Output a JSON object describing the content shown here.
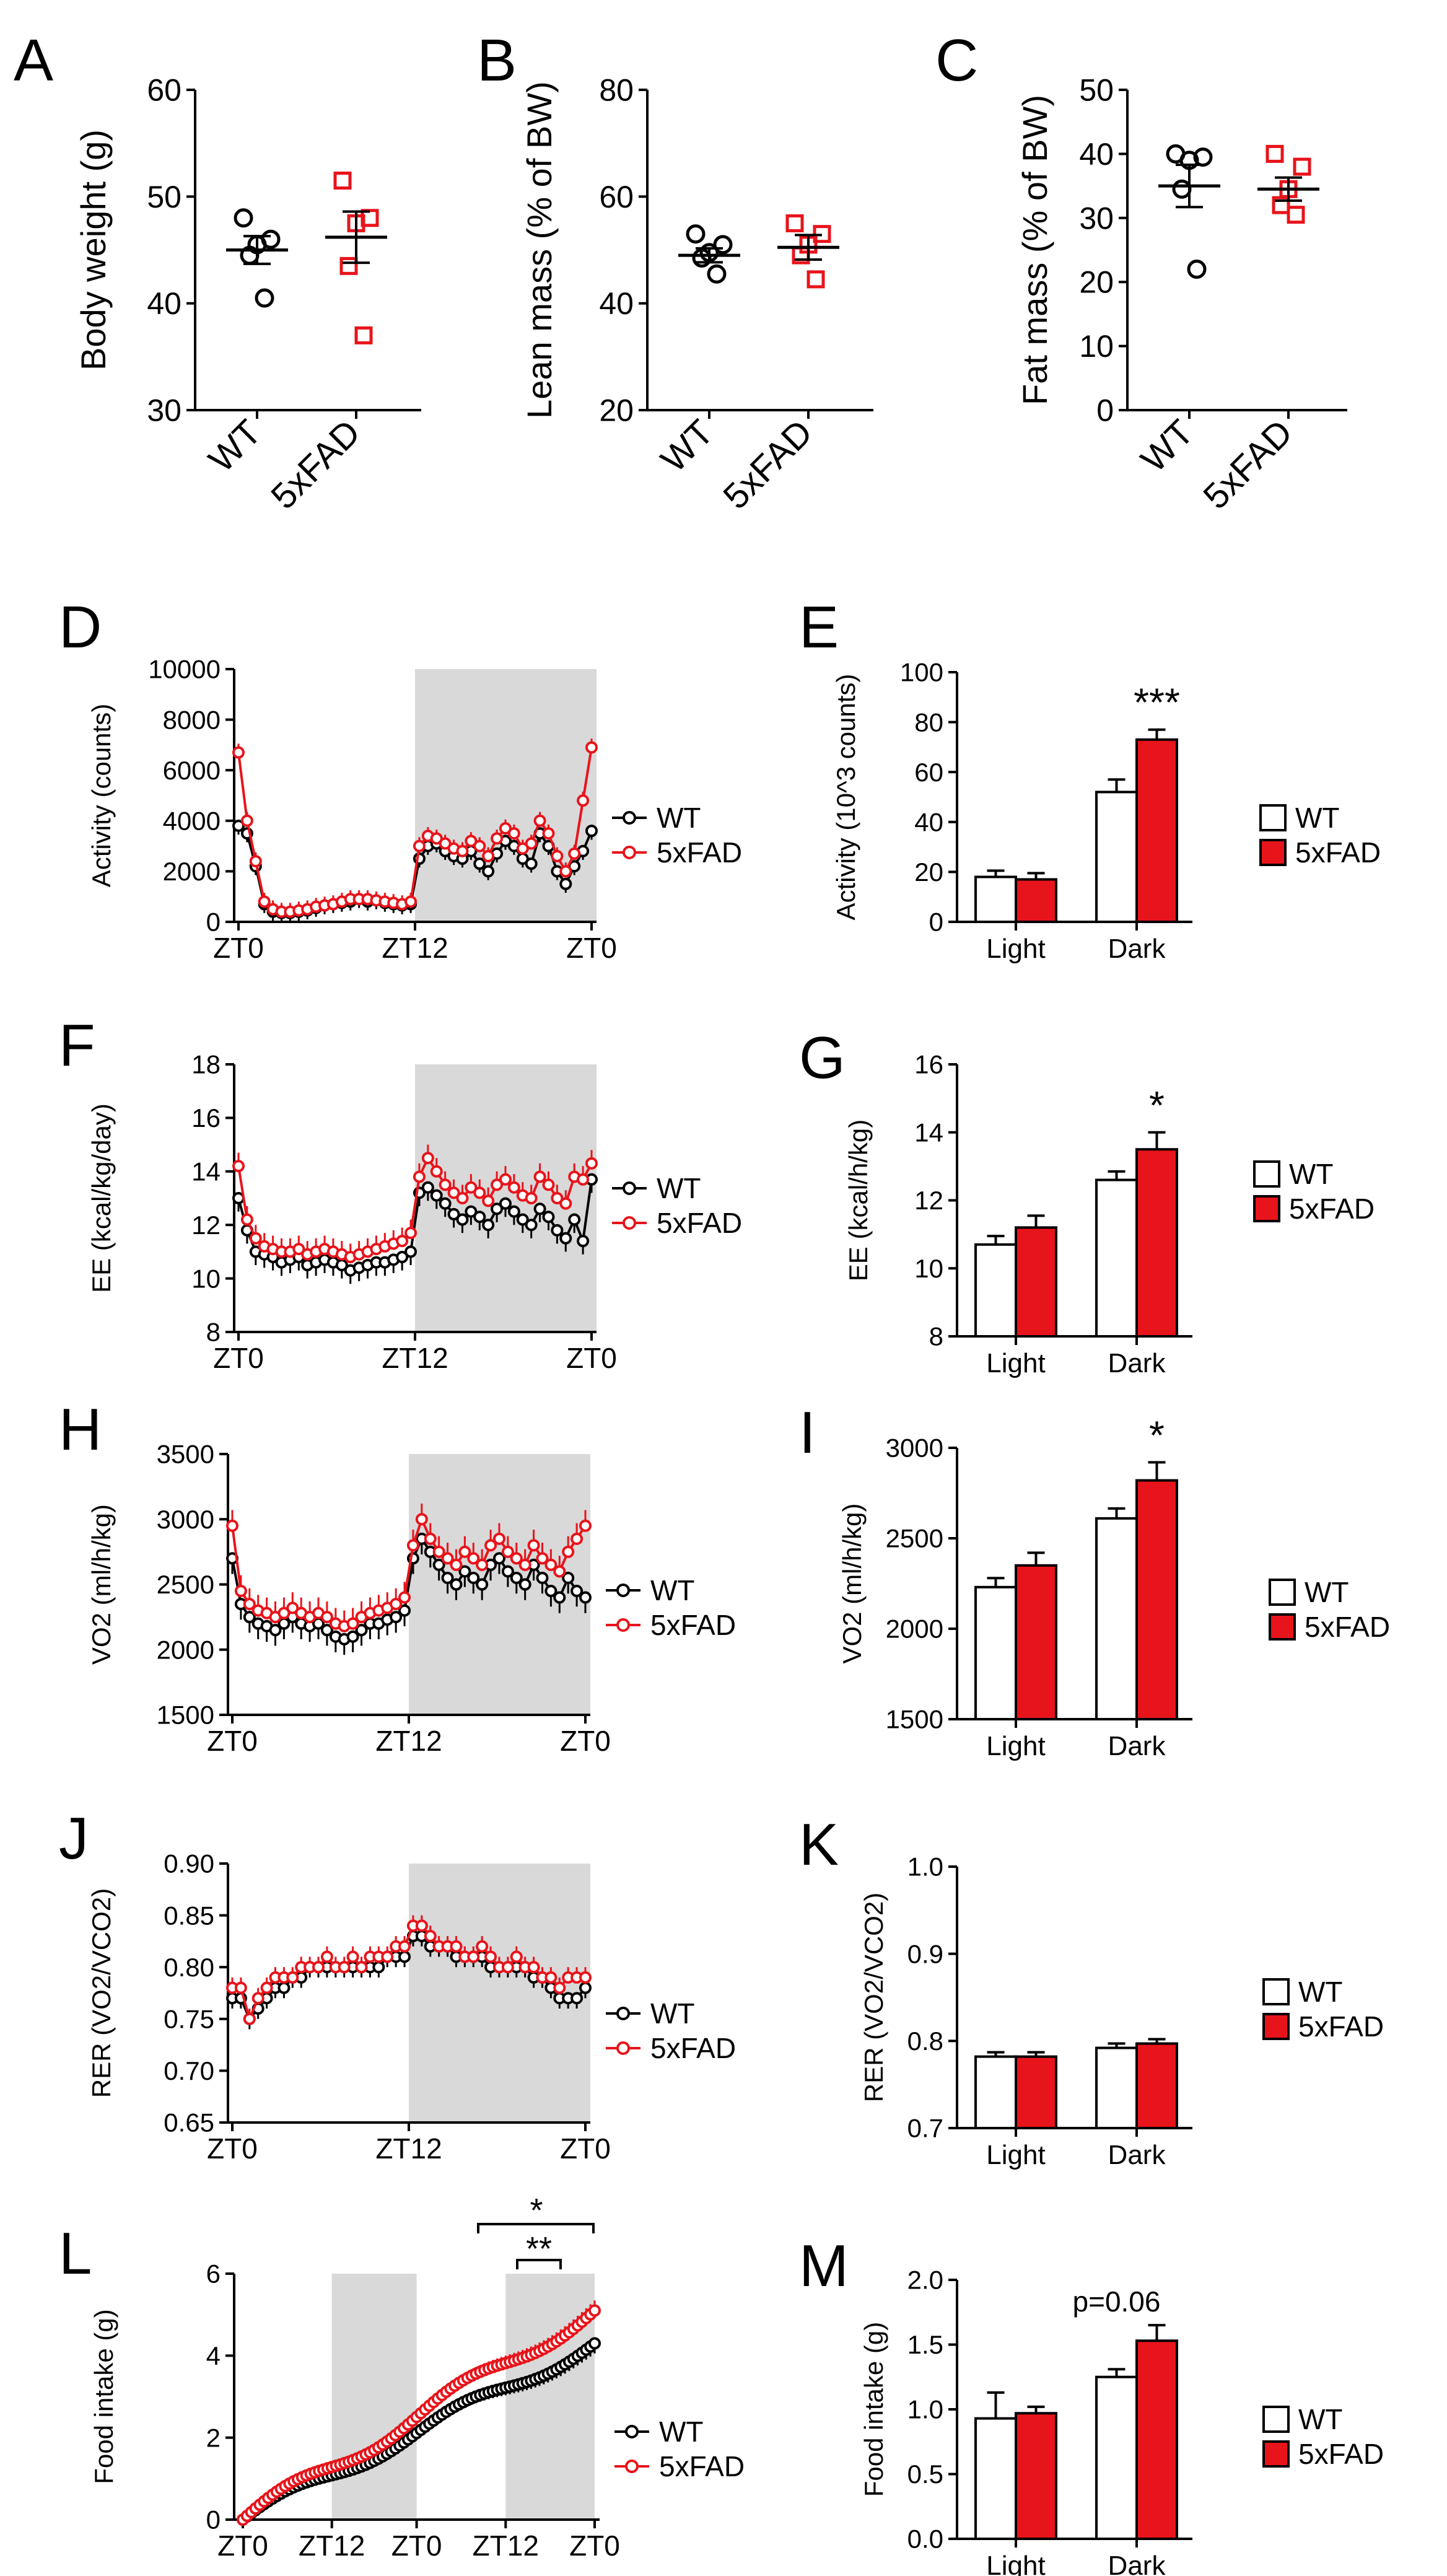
{
  "colors": {
    "wt": "#000000",
    "fad": "#e8141b",
    "shade": "#d9d9d9"
  },
  "chart_data": [
    {
      "id": "A",
      "letter": "A",
      "type": "scatter",
      "ylabel": "Body weight  (g)",
      "ylim": [
        30,
        60
      ],
      "yticks": [
        30,
        40,
        50,
        60
      ],
      "groups": [
        "WT",
        "5xFAD"
      ],
      "wt": [
        48,
        46,
        45.5,
        44.5,
        40.5
      ],
      "fad": [
        51.5,
        48,
        47.5,
        43.5,
        37
      ],
      "wt_mean": 45,
      "wt_sem": 1.3,
      "fad_mean": 46.2,
      "fad_sem": 2.4
    },
    {
      "id": "B",
      "letter": "B",
      "type": "scatter",
      "ylabel": "Lean mass (% of  BW)",
      "ylim": [
        20,
        80
      ],
      "yticks": [
        20,
        40,
        60,
        80
      ],
      "groups": [
        "WT",
        "5xFAD"
      ],
      "wt": [
        53,
        51,
        49.5,
        48.5,
        45.5
      ],
      "fad": [
        55,
        53,
        51,
        49,
        44.5
      ],
      "wt_mean": 49,
      "wt_sem": 1.3,
      "fad_mean": 50.5,
      "fad_sem": 2.3
    },
    {
      "id": "C",
      "letter": "C",
      "type": "scatter",
      "ylabel": "Fat mass (% of  BW)",
      "ylim": [
        0,
        50
      ],
      "yticks": [
        0,
        10,
        20,
        30,
        40,
        50
      ],
      "groups": [
        "WT",
        "5xFAD"
      ],
      "wt": [
        40,
        39.5,
        39,
        34.5,
        22
      ],
      "fad": [
        40,
        38,
        34.5,
        32,
        30.5
      ],
      "wt_mean": 35,
      "wt_sem": 3.3,
      "fad_mean": 34.5,
      "fad_sem": 1.8
    },
    {
      "id": "D",
      "letter": "D",
      "type": "line",
      "ylabel": "Activity (counts)",
      "ylim": [
        0,
        10000
      ],
      "yticks": [
        0,
        2000,
        4000,
        6000,
        8000,
        10000
      ],
      "xticks": [
        "ZT0",
        "ZT12",
        "ZT0"
      ],
      "legend": [
        "WT",
        "5xFAD"
      ],
      "wt": [
        3800,
        3500,
        2200,
        700,
        400,
        350,
        350,
        400,
        450,
        550,
        650,
        700,
        750,
        800,
        900,
        800,
        850,
        750,
        700,
        650,
        700,
        2500,
        3000,
        3100,
        2800,
        2600,
        2500,
        2800,
        2300,
        2000,
        2700,
        3200,
        3000,
        2500,
        2300,
        3500,
        3000,
        2000,
        1500,
        2200,
        2800,
        3600
      ],
      "fad": [
        6700,
        4000,
        2400,
        800,
        500,
        400,
        400,
        450,
        500,
        600,
        650,
        700,
        800,
        900,
        900,
        900,
        850,
        800,
        750,
        700,
        800,
        3000,
        3400,
        3300,
        3100,
        2900,
        2800,
        3200,
        3000,
        2600,
        3300,
        3700,
        3500,
        2900,
        3100,
        4000,
        3500,
        2600,
        2000,
        2700,
        4800,
        6900
      ],
      "err": 350
    },
    {
      "id": "E",
      "letter": "E",
      "type": "bar",
      "ylabel": "Activity (10^3 counts)",
      "ylim": [
        0,
        100
      ],
      "yticks": [
        0,
        20,
        40,
        60,
        80,
        100
      ],
      "categories": [
        "Light",
        "Dark"
      ],
      "series": [
        {
          "name": "WT",
          "values": [
            18,
            52
          ],
          "err": [
            2.5,
            5
          ]
        },
        {
          "name": "5xFAD",
          "values": [
            17,
            73
          ],
          "err": [
            2.5,
            4
          ]
        }
      ],
      "annotation": "***",
      "legend": [
        "WT",
        "5xFAD"
      ]
    },
    {
      "id": "F",
      "letter": "F",
      "type": "line",
      "ylabel": "EE (kcal/kg/day)",
      "ylim": [
        8,
        18
      ],
      "yticks": [
        8,
        10,
        12,
        14,
        16,
        18
      ],
      "xticks": [
        "ZT0",
        "ZT12",
        "ZT0"
      ],
      "legend": [
        "WT",
        "5xFAD"
      ],
      "wt": [
        13,
        11.8,
        11,
        10.9,
        10.8,
        10.6,
        10.7,
        10.8,
        10.5,
        10.6,
        10.7,
        10.6,
        10.5,
        10.3,
        10.4,
        10.5,
        10.6,
        10.6,
        10.7,
        10.8,
        11,
        13.2,
        13.4,
        13.1,
        12.8,
        12.4,
        12.2,
        12.5,
        12.3,
        12,
        12.6,
        12.8,
        12.5,
        12.2,
        12,
        12.6,
        12.3,
        11.8,
        11.5,
        12.2,
        11.4,
        13.7
      ],
      "fad": [
        14.2,
        12.2,
        11.5,
        11.2,
        11.1,
        11,
        11,
        11.1,
        10.9,
        11,
        11.1,
        11,
        10.9,
        10.8,
        10.9,
        11,
        11.1,
        11.2,
        11.3,
        11.4,
        11.7,
        13.8,
        14.5,
        14,
        13.5,
        13.2,
        13,
        13.4,
        13.2,
        12.9,
        13.5,
        13.7,
        13.4,
        13.1,
        13,
        13.8,
        13.5,
        13,
        12.8,
        13.8,
        13.7,
        14.3
      ],
      "err": 0.5
    },
    {
      "id": "G",
      "letter": "G",
      "type": "bar",
      "ylabel": "EE  (kcal/h/kg)",
      "ylim": [
        8,
        16
      ],
      "yticks": [
        8,
        10,
        12,
        14,
        16
      ],
      "categories": [
        "Light",
        "Dark"
      ],
      "series": [
        {
          "name": "WT",
          "values": [
            10.7,
            12.6
          ],
          "err": [
            0.25,
            0.25
          ]
        },
        {
          "name": "5xFAD",
          "values": [
            11.2,
            13.5
          ],
          "err": [
            0.35,
            0.5
          ]
        }
      ],
      "annotation": "*",
      "legend": [
        "WT",
        "5xFAD"
      ]
    },
    {
      "id": "H",
      "letter": "H",
      "type": "line",
      "ylabel": "VO2 (ml/h/kg)",
      "ylim": [
        1500,
        3500
      ],
      "yticks": [
        1500,
        2000,
        2500,
        3000,
        3500
      ],
      "xticks": [
        "ZT0",
        "ZT12",
        "ZT0"
      ],
      "legend": [
        "WT",
        "5xFAD"
      ],
      "wt": [
        2700,
        2350,
        2250,
        2200,
        2180,
        2150,
        2200,
        2250,
        2200,
        2180,
        2200,
        2150,
        2100,
        2080,
        2100,
        2150,
        2200,
        2200,
        2230,
        2250,
        2300,
        2700,
        2850,
        2750,
        2650,
        2550,
        2500,
        2600,
        2550,
        2500,
        2650,
        2700,
        2600,
        2550,
        2500,
        2650,
        2550,
        2450,
        2400,
        2550,
        2450,
        2400
      ],
      "fad": [
        2950,
        2450,
        2350,
        2300,
        2280,
        2250,
        2280,
        2320,
        2280,
        2250,
        2280,
        2250,
        2200,
        2180,
        2200,
        2250,
        2280,
        2300,
        2320,
        2350,
        2400,
        2800,
        3000,
        2850,
        2750,
        2700,
        2650,
        2750,
        2700,
        2650,
        2800,
        2850,
        2750,
        2700,
        2650,
        2800,
        2700,
        2650,
        2600,
        2750,
        2850,
        2950
      ],
      "err": 120
    },
    {
      "id": "I",
      "letter": "I",
      "type": "bar",
      "ylabel": "VO2 (ml/h/kg)",
      "ylim": [
        1500,
        3000
      ],
      "yticks": [
        1500,
        2000,
        2500,
        3000
      ],
      "categories": [
        "Light",
        "Dark"
      ],
      "series": [
        {
          "name": "WT",
          "values": [
            2230,
            2610
          ],
          "err": [
            50,
            55
          ]
        },
        {
          "name": "5xFAD",
          "values": [
            2350,
            2820
          ],
          "err": [
            70,
            100
          ]
        }
      ],
      "annotation": "*",
      "legend": [
        "WT",
        "5xFAD"
      ]
    },
    {
      "id": "J",
      "letter": "J",
      "type": "line",
      "ylabel": "RER  (VO2/VCO2)",
      "ylim": [
        0.65,
        0.9
      ],
      "yticks": [
        0.65,
        0.7,
        0.75,
        0.8,
        0.85,
        0.9
      ],
      "xticks": [
        "ZT0",
        "ZT12",
        "ZT0"
      ],
      "legend": [
        "WT",
        "5xFAD"
      ],
      "wt": [
        0.77,
        0.77,
        0.75,
        0.76,
        0.77,
        0.78,
        0.78,
        0.79,
        0.79,
        0.8,
        0.8,
        0.8,
        0.8,
        0.8,
        0.8,
        0.8,
        0.8,
        0.8,
        0.81,
        0.81,
        0.81,
        0.83,
        0.83,
        0.82,
        0.82,
        0.82,
        0.81,
        0.81,
        0.81,
        0.81,
        0.8,
        0.8,
        0.8,
        0.8,
        0.8,
        0.79,
        0.79,
        0.78,
        0.77,
        0.77,
        0.77,
        0.78
      ],
      "fad": [
        0.78,
        0.78,
        0.75,
        0.77,
        0.78,
        0.79,
        0.79,
        0.79,
        0.8,
        0.8,
        0.8,
        0.81,
        0.8,
        0.8,
        0.81,
        0.8,
        0.81,
        0.81,
        0.81,
        0.82,
        0.82,
        0.84,
        0.84,
        0.83,
        0.82,
        0.82,
        0.82,
        0.81,
        0.81,
        0.82,
        0.81,
        0.8,
        0.8,
        0.81,
        0.8,
        0.8,
        0.79,
        0.79,
        0.78,
        0.79,
        0.79,
        0.79
      ],
      "err": 0.01
    },
    {
      "id": "K",
      "letter": "K",
      "type": "bar",
      "ylabel": "RER  (VO2/VCO2)",
      "ylim": [
        0.7,
        1.0
      ],
      "yticks": [
        0.7,
        0.8,
        0.9,
        1.0
      ],
      "categories": [
        "Light",
        "Dark"
      ],
      "series": [
        {
          "name": "WT",
          "values": [
            0.782,
            0.792
          ],
          "err": [
            0.005,
            0.005
          ]
        },
        {
          "name": "5xFAD",
          "values": [
            0.782,
            0.797
          ],
          "err": [
            0.005,
            0.005
          ]
        }
      ],
      "annotation": "",
      "legend": [
        "WT",
        "5xFAD"
      ]
    },
    {
      "id": "L",
      "letter": "L",
      "type": "line",
      "ylabel": "Food intake (g)",
      "ylim": [
        0,
        6
      ],
      "yticks": [
        0,
        2,
        4,
        6
      ],
      "xticks": [
        "ZT0",
        "ZT12",
        "ZT0",
        "ZT12",
        "ZT0"
      ],
      "legend": [
        "WT",
        "5xFAD"
      ],
      "wt_end": 4.3,
      "fad_end": 5.1,
      "err": 0.25,
      "sig": [
        "*",
        "**"
      ]
    },
    {
      "id": "M",
      "letter": "M",
      "type": "bar",
      "ylabel": "Food intake (g)",
      "ylim": [
        0,
        2.0
      ],
      "yticks": [
        0.0,
        0.5,
        1.0,
        1.5,
        2.0
      ],
      "categories": [
        "Light",
        "Dark"
      ],
      "series": [
        {
          "name": "WT",
          "values": [
            0.93,
            1.25
          ],
          "err": [
            0.2,
            0.06
          ]
        },
        {
          "name": "5xFAD",
          "values": [
            0.97,
            1.53
          ],
          "err": [
            0.05,
            0.12
          ]
        }
      ],
      "annotation": "p=0.06",
      "legend": [
        "WT",
        "5xFAD"
      ]
    }
  ]
}
